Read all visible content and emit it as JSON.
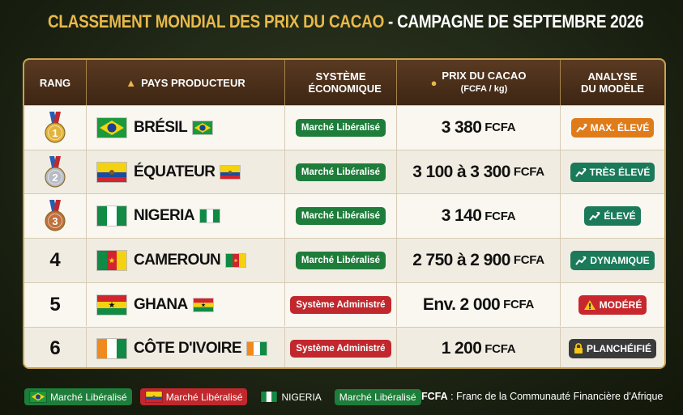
{
  "header": {
    "title_main": "CLASSEMENT MONDIAL DES PRIX DU CACAO",
    "title_sub": "- CAMPAGNE DE SEPTEMBRE 2026"
  },
  "table": {
    "columns": [
      "RANG",
      "PAYS PRODUCTEUR",
      "SYSTÈME ÉCONOMIQUE",
      "PRIX DU CACAO",
      "ANALYSE DU MODÈLE"
    ],
    "price_unit_header": "(FCFA / kg)",
    "rows": [
      {
        "rank": "1",
        "country": "BRÉSIL",
        "system": "Marché Libéralisé",
        "price": "3 380",
        "unit": "FCFA",
        "analysis": "MAX. ÉLEVÉ"
      },
      {
        "rank": "2",
        "country": "ÉQUATEUR",
        "system": "Marché Libéralisé",
        "price": "3 100 à 3 300",
        "unit": "FCFA",
        "analysis": "TRÈS ÉLEVÉ"
      },
      {
        "rank": "3",
        "country": "NIGERIA",
        "system": "Marché Libéralisé",
        "price": "3 140",
        "unit": "FCFA",
        "analysis": "ÉLEVÉ"
      },
      {
        "rank": "4",
        "country": "CAMEROUN",
        "system": "Marché Libéralisé",
        "price": "2 750 à 2 900",
        "unit": "FCFA",
        "analysis": "DYNAMIQUE"
      },
      {
        "rank": "5",
        "country": "GHANA",
        "system": "Système Administré",
        "price": "Env. 2 000",
        "unit": "FCFA",
        "analysis": "MODÉRÉ"
      },
      {
        "rank": "6",
        "country": "CÔTE D'IVOIRE",
        "system": "Système Administré",
        "price": "1 200",
        "unit": "FCFA",
        "analysis": "PLANCHÉIFIÉ"
      }
    ]
  },
  "legend": [
    "Marché Libéralisé",
    "Marché Libéralisé",
    "NIGERIA",
    "Marché Libéralisé"
  ],
  "footnote": {
    "term": "FCFA",
    "definition": ": Franc de la Communauté Financière d'Afrique"
  }
}
